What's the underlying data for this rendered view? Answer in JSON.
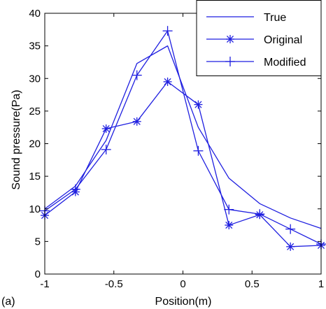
{
  "panel_label": "(a)",
  "colors": {
    "series": "#1f1fe0",
    "axis": "#000000",
    "background": "#ffffff"
  },
  "chart_data": {
    "type": "line",
    "title": "",
    "xlabel": "Position(m)",
    "ylabel": "Sound pressure(Pa)",
    "xlim": [
      -1,
      1
    ],
    "ylim": [
      0,
      40
    ],
    "xticks": [
      -1,
      -0.5,
      0,
      0.5,
      1
    ],
    "xtick_labels": [
      "-1",
      "-0.5",
      "0",
      "0.5",
      "1"
    ],
    "yticks": [
      0,
      5,
      10,
      15,
      20,
      25,
      30,
      35,
      40
    ],
    "ytick_labels": [
      "0",
      "5",
      "10",
      "15",
      "20",
      "25",
      "30",
      "35",
      "40"
    ],
    "grid": false,
    "legend_position": "top-right",
    "x": [
      -1,
      -0.778,
      -0.556,
      -0.333,
      -0.111,
      0.111,
      0.333,
      0.556,
      0.778,
      1
    ],
    "series": [
      {
        "name": "True",
        "marker": "none",
        "values": [
          10,
          13.5,
          20.5,
          32.3,
          35,
          22.5,
          14.7,
          10.8,
          8.6,
          7
        ]
      },
      {
        "name": "Original",
        "marker": "asterisk",
        "values": [
          9,
          12.6,
          22.3,
          23.4,
          29.5,
          26,
          7.5,
          9.1,
          4.2,
          4.4
        ]
      },
      {
        "name": "Modified",
        "marker": "plus",
        "values": [
          9.7,
          13,
          19.1,
          30.5,
          37.3,
          18.9,
          9.9,
          9.2,
          6.9,
          4.6
        ]
      }
    ]
  }
}
